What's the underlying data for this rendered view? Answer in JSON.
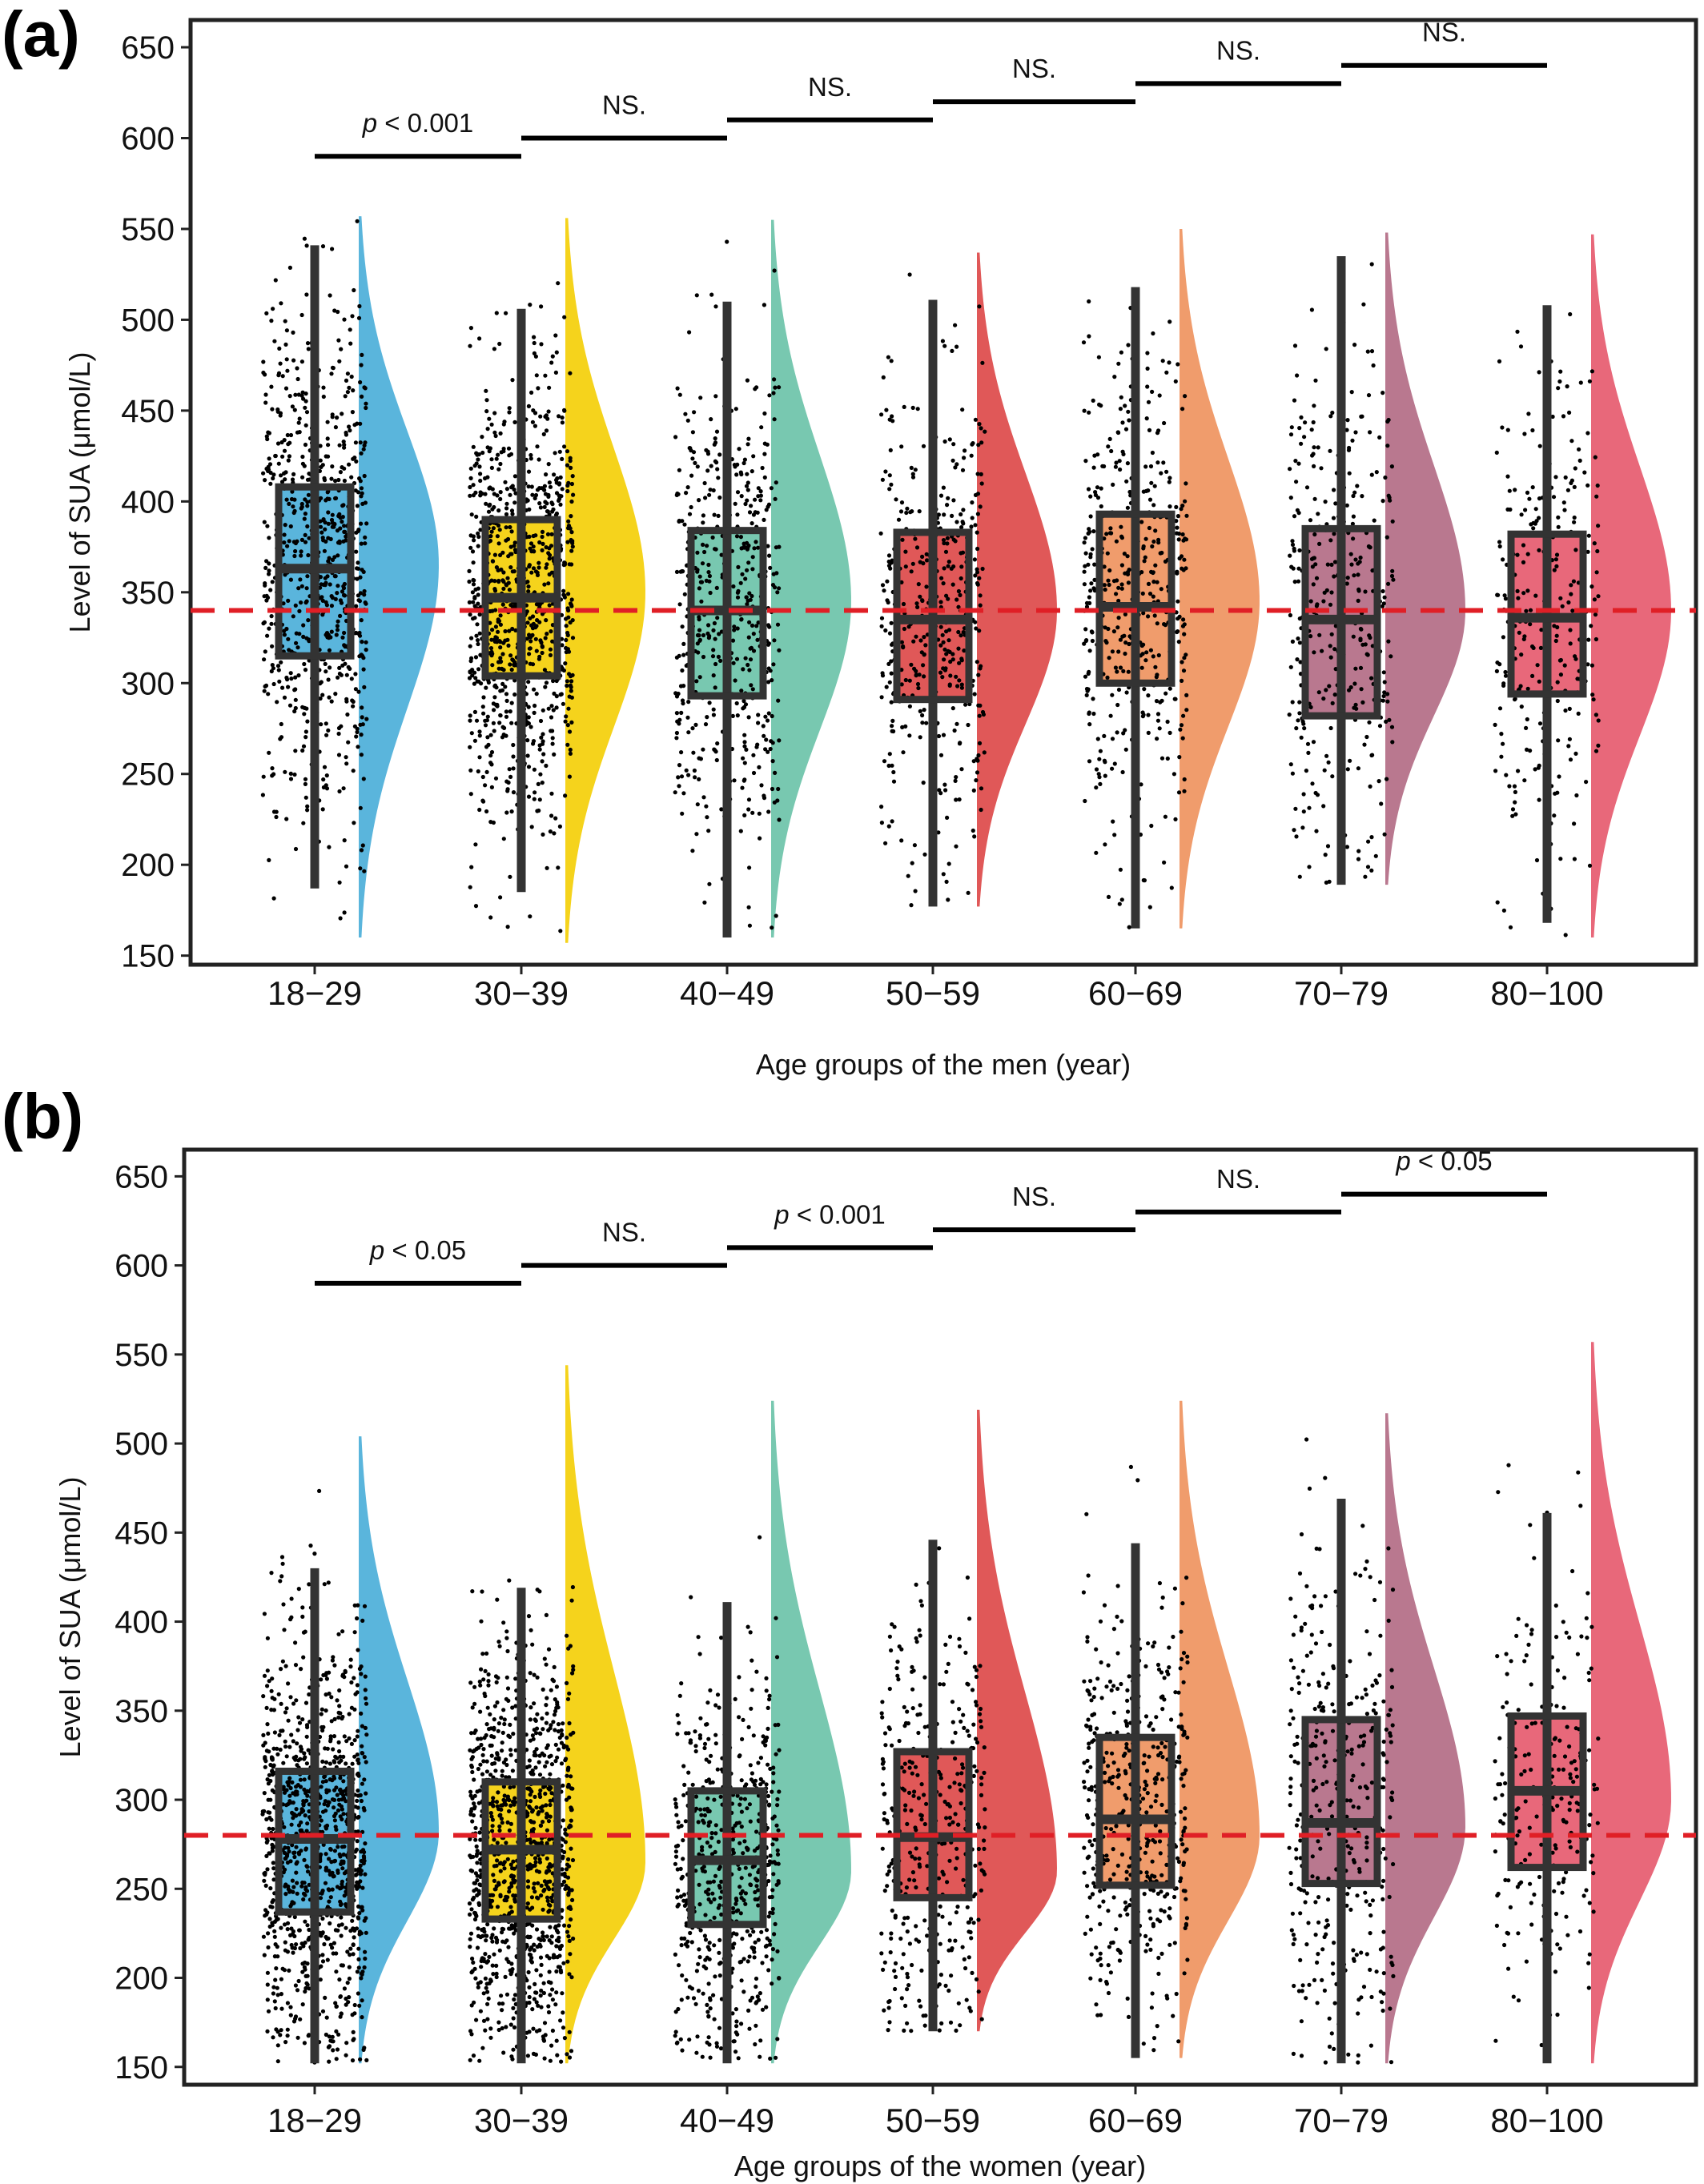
{
  "colors": {
    "dashed_reference": "#e01f26",
    "group_colors": [
      "#5ab5dc",
      "#f5d31c",
      "#78c8b0",
      "#e05858",
      "#f09c6c",
      "#b9788f",
      "#e8687a"
    ],
    "box_stroke": "#333333",
    "points": "#000000"
  },
  "chart_data": [
    {
      "panel": "(a)",
      "type": "raincloud",
      "xlabel": "Age groups of the men (year)",
      "ylabel": "Level of SUA (μmol/L)",
      "ylim": [
        145,
        665
      ],
      "yticks": [
        "150",
        "200",
        "250",
        "300",
        "350",
        "400",
        "450",
        "500",
        "550",
        "600",
        "650"
      ],
      "reference_line": 340,
      "categories": [
        "18−29",
        "30−39",
        "40−49",
        "50−59",
        "60−69",
        "70−79",
        "80−100"
      ],
      "boxes": [
        {
          "whisker_low": 187,
          "q1": 315,
          "median": 363,
          "q3": 408,
          "whisker_high": 541
        },
        {
          "whisker_low": 185,
          "q1": 304,
          "median": 347,
          "q3": 390,
          "whisker_high": 506
        },
        {
          "whisker_low": 160,
          "q1": 293,
          "median": 340,
          "q3": 384,
          "whisker_high": 510
        },
        {
          "whisker_low": 177,
          "q1": 291,
          "median": 335,
          "q3": 383,
          "whisker_high": 511
        },
        {
          "whisker_low": 165,
          "q1": 300,
          "median": 342,
          "q3": 393,
          "whisker_high": 518
        },
        {
          "whisker_low": 189,
          "q1": 282,
          "median": 335,
          "q3": 385,
          "whisker_high": 535
        },
        {
          "whisker_low": 168,
          "q1": 294,
          "median": 336,
          "q3": 382,
          "whisker_high": 508
        }
      ],
      "density": [
        {
          "min": 160,
          "max": 557,
          "peak": 365
        },
        {
          "min": 157,
          "max": 556,
          "peak": 350
        },
        {
          "min": 160,
          "max": 555,
          "peak": 345
        },
        {
          "min": 177,
          "max": 537,
          "peak": 340
        },
        {
          "min": 165,
          "max": 550,
          "peak": 345
        },
        {
          "min": 189,
          "max": 548,
          "peak": 340
        },
        {
          "min": 160,
          "max": 547,
          "peak": 340
        }
      ],
      "point_counts": [
        750,
        900,
        520,
        420,
        440,
        340,
        270
      ],
      "comparisons": [
        {
          "from": 0,
          "to": 1,
          "y": 590,
          "label_prefix": "p",
          "label_rest": " < 0.001",
          "label": "p < 0.001"
        },
        {
          "from": 1,
          "to": 2,
          "y": 600,
          "label": "NS."
        },
        {
          "from": 2,
          "to": 3,
          "y": 610,
          "label": "NS."
        },
        {
          "from": 3,
          "to": 4,
          "y": 620,
          "label": "NS."
        },
        {
          "from": 4,
          "to": 5,
          "y": 630,
          "label": "NS."
        },
        {
          "from": 5,
          "to": 6,
          "y": 640,
          "label": "NS."
        }
      ]
    },
    {
      "panel": "(b)",
      "type": "raincloud",
      "xlabel": "Age groups of the women (year)",
      "ylabel": "Level of SUA (μmol/L)",
      "ylim": [
        140,
        665
      ],
      "yticks": [
        "150",
        "200",
        "250",
        "300",
        "350",
        "400",
        "450",
        "500",
        "550",
        "600",
        "650"
      ],
      "reference_line": 280,
      "categories": [
        "18−29",
        "30−39",
        "40−49",
        "50−59",
        "60−69",
        "70−79",
        "80−100"
      ],
      "boxes": [
        {
          "whisker_low": 152,
          "q1": 237,
          "median": 278,
          "q3": 316,
          "whisker_high": 430
        },
        {
          "whisker_low": 152,
          "q1": 233,
          "median": 272,
          "q3": 310,
          "whisker_high": 419
        },
        {
          "whisker_low": 152,
          "q1": 230,
          "median": 266,
          "q3": 305,
          "whisker_high": 411
        },
        {
          "whisker_low": 170,
          "q1": 245,
          "median": 279,
          "q3": 327,
          "whisker_high": 446
        },
        {
          "whisker_low": 155,
          "q1": 252,
          "median": 289,
          "q3": 335,
          "whisker_high": 444
        },
        {
          "whisker_low": 152,
          "q1": 253,
          "median": 287,
          "q3": 345,
          "whisker_high": 469
        },
        {
          "whisker_low": 152,
          "q1": 262,
          "median": 305,
          "q3": 347,
          "whisker_high": 461
        }
      ],
      "density": [
        {
          "min": 152,
          "max": 504,
          "peak": 282
        },
        {
          "min": 152,
          "max": 544,
          "peak": 265
        },
        {
          "min": 152,
          "max": 524,
          "peak": 260
        },
        {
          "min": 170,
          "max": 519,
          "peak": 260
        },
        {
          "min": 155,
          "max": 524,
          "peak": 280
        },
        {
          "min": 152,
          "max": 517,
          "peak": 285
        },
        {
          "min": 152,
          "max": 557,
          "peak": 300
        }
      ],
      "point_counts": [
        1000,
        1050,
        560,
        380,
        470,
        370,
        240
      ],
      "comparisons": [
        {
          "from": 0,
          "to": 1,
          "y": 590,
          "label_prefix": "p",
          "label_rest": " < 0.05",
          "label": "p < 0.05"
        },
        {
          "from": 1,
          "to": 2,
          "y": 600,
          "label": "NS."
        },
        {
          "from": 2,
          "to": 3,
          "y": 610,
          "label_prefix": "p",
          "label_rest": " < 0.001",
          "label": "p < 0.001"
        },
        {
          "from": 3,
          "to": 4,
          "y": 620,
          "label": "NS."
        },
        {
          "from": 4,
          "to": 5,
          "y": 630,
          "label": "NS."
        },
        {
          "from": 5,
          "to": 6,
          "y": 640,
          "label_prefix": "p",
          "label_rest": " < 0.05",
          "label": "p < 0.05"
        }
      ]
    }
  ]
}
